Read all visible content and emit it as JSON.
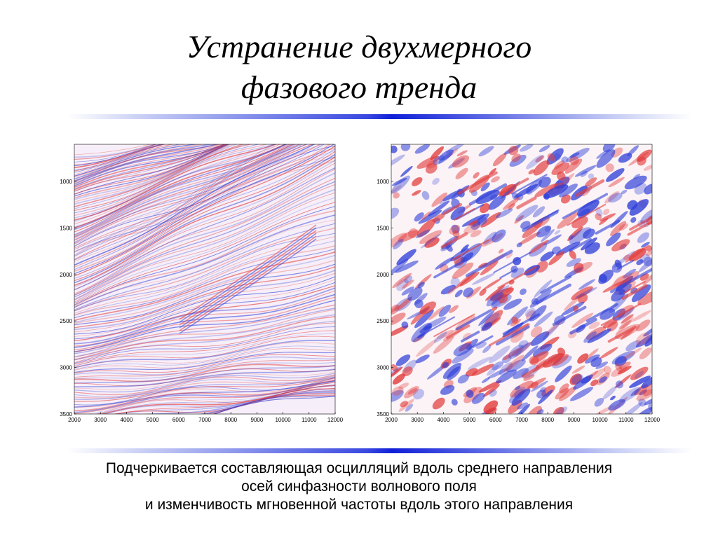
{
  "title": {
    "line1": "Устранение двухмерного",
    "line2": "фазового тренда"
  },
  "figures": [
    {
      "id": "left",
      "palette": "pale",
      "x_ticks": [
        "2000",
        "3000",
        "4000",
        "5000",
        "6000",
        "7000",
        "8000",
        "9000",
        "10000",
        "11000",
        "12000"
      ],
      "y_ticks": [
        "1000",
        "1500",
        "2000",
        "2500",
        "3000",
        "3500"
      ]
    },
    {
      "id": "right",
      "palette": "strong",
      "x_ticks": [
        "2000",
        "3000",
        "4000",
        "5000",
        "6000",
        "7000",
        "8000",
        "9000",
        "10000",
        "11000",
        "12000"
      ],
      "y_ticks": [
        "1000",
        "1500",
        "2000",
        "2500",
        "3000",
        "3500"
      ]
    }
  ],
  "caption": {
    "line1": "Подчеркивается составляющая осцилляций вдоль среднего направления",
    "line2": "осей синфазности волнового поля",
    "line3": "и изменчивость мгновенной частоты вдоль этого направления"
  },
  "colors": {
    "positive": "#e23a3a",
    "negative": "#2f3fd8",
    "rule": "#1020d8"
  }
}
